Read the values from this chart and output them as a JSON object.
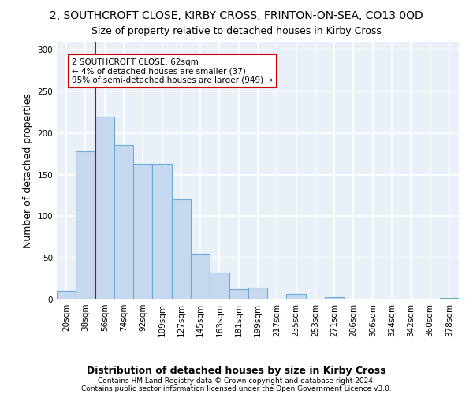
{
  "title": "2, SOUTHCROFT CLOSE, KIRBY CROSS, FRINTON-ON-SEA, CO13 0QD",
  "subtitle": "Size of property relative to detached houses in Kirby Cross",
  "xlabel": "Distribution of detached houses by size in Kirby Cross",
  "ylabel": "Number of detached properties",
  "bar_labels": [
    "20sqm",
    "38sqm",
    "56sqm",
    "74sqm",
    "92sqm",
    "109sqm",
    "127sqm",
    "145sqm",
    "163sqm",
    "181sqm",
    "199sqm",
    "217sqm",
    "235sqm",
    "253sqm",
    "271sqm",
    "286sqm",
    "306sqm",
    "324sqm",
    "342sqm",
    "360sqm",
    "378sqm"
  ],
  "bar_values": [
    10,
    178,
    220,
    186,
    163,
    163,
    120,
    55,
    32,
    12,
    14,
    0,
    7,
    0,
    3,
    0,
    0,
    1,
    0,
    0,
    2
  ],
  "bar_color": "#c5d8f0",
  "bar_edge_color": "#6aaad4",
  "ylim": [
    0,
    310
  ],
  "yticks": [
    0,
    50,
    100,
    150,
    200,
    250,
    300
  ],
  "vline_x": 2.0,
  "vline_color": "#cc0000",
  "annotation_text": "2 SOUTHCROFT CLOSE: 62sqm\n← 4% of detached houses are smaller (37)\n95% of semi-detached houses are larger (949) →",
  "footer_line1": "Contains HM Land Registry data © Crown copyright and database right 2024.",
  "footer_line2": "Contains public sector information licensed under the Open Government Licence v3.0.",
  "background_color": "#eaf0f8",
  "grid_color": "#d0d8e8",
  "title_fontsize": 10,
  "subtitle_fontsize": 9,
  "axis_label_fontsize": 9,
  "tick_fontsize": 7.5,
  "footer_fontsize": 6.5
}
